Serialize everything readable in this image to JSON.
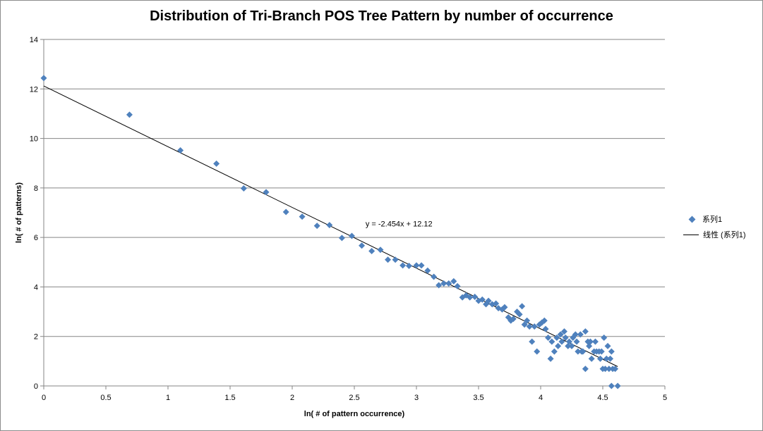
{
  "chart_data": {
    "type": "scatter",
    "title": "Distribution of Tri-Branch POS Tree Pattern by number of occurrence",
    "xlabel": "ln( # of pattern occurrence)",
    "ylabel": "ln( # of patterns)",
    "xlim": [
      0,
      5
    ],
    "ylim": [
      0,
      14
    ],
    "xticks": [
      0,
      0.5,
      1,
      1.5,
      2,
      2.5,
      3,
      3.5,
      4,
      4.5,
      5
    ],
    "yticks": [
      0,
      2,
      4,
      6,
      8,
      10,
      12,
      14
    ],
    "xtick_labels": [
      "0",
      "0.5",
      "1",
      "1.5",
      "2",
      "2.5",
      "3",
      "3.5",
      "4",
      "4.5",
      "5"
    ],
    "ytick_labels": [
      "0",
      "2",
      "4",
      "6",
      "8",
      "10",
      "12",
      "14"
    ],
    "grid": "horizontal",
    "legend_position": "right",
    "series": [
      {
        "name": "系列1",
        "marker": "diamond",
        "color": "#4f81bd",
        "points": [
          [
            0,
            12.44
          ],
          [
            0.69,
            10.96
          ],
          [
            1.1,
            9.52
          ],
          [
            1.39,
            8.98
          ],
          [
            1.61,
            7.98
          ],
          [
            1.79,
            7.83
          ],
          [
            1.95,
            7.03
          ],
          [
            2.08,
            6.84
          ],
          [
            2.2,
            6.47
          ],
          [
            2.3,
            6.5
          ],
          [
            2.4,
            5.98
          ],
          [
            2.48,
            6.06
          ],
          [
            2.56,
            5.67
          ],
          [
            2.64,
            5.45
          ],
          [
            2.71,
            5.5
          ],
          [
            2.77,
            5.1
          ],
          [
            2.83,
            5.1
          ],
          [
            2.89,
            4.87
          ],
          [
            2.94,
            4.85
          ],
          [
            3.0,
            4.87
          ],
          [
            3.04,
            4.87
          ],
          [
            3.09,
            4.66
          ],
          [
            3.14,
            4.41
          ],
          [
            3.18,
            4.07
          ],
          [
            3.22,
            4.14
          ],
          [
            3.26,
            4.14
          ],
          [
            3.3,
            4.23
          ],
          [
            3.33,
            4.03
          ],
          [
            3.37,
            3.58
          ],
          [
            3.4,
            3.66
          ],
          [
            3.43,
            3.58
          ],
          [
            3.47,
            3.6
          ],
          [
            3.5,
            3.44
          ],
          [
            3.53,
            3.49
          ],
          [
            3.56,
            3.3
          ],
          [
            3.58,
            3.44
          ],
          [
            3.61,
            3.3
          ],
          [
            3.64,
            3.33
          ],
          [
            3.66,
            3.14
          ],
          [
            3.69,
            3.09
          ],
          [
            3.71,
            3.18
          ],
          [
            3.74,
            2.77
          ],
          [
            3.76,
            2.64
          ],
          [
            3.78,
            2.71
          ],
          [
            3.81,
            3.0
          ],
          [
            3.83,
            2.89
          ],
          [
            3.85,
            3.22
          ],
          [
            3.87,
            2.48
          ],
          [
            3.89,
            2.64
          ],
          [
            3.91,
            2.4
          ],
          [
            3.93,
            1.79
          ],
          [
            3.95,
            2.4
          ],
          [
            3.97,
            1.39
          ],
          [
            3.99,
            2.48
          ],
          [
            4.01,
            2.56
          ],
          [
            4.03,
            2.64
          ],
          [
            4.04,
            2.3
          ],
          [
            4.06,
            1.95
          ],
          [
            4.08,
            1.1
          ],
          [
            4.09,
            1.79
          ],
          [
            4.11,
            1.39
          ],
          [
            4.13,
            1.95
          ],
          [
            4.14,
            1.61
          ],
          [
            4.16,
            2.08
          ],
          [
            4.17,
            1.79
          ],
          [
            4.19,
            2.2
          ],
          [
            4.2,
            1.95
          ],
          [
            4.22,
            1.61
          ],
          [
            4.23,
            1.79
          ],
          [
            4.25,
            1.61
          ],
          [
            4.26,
            1.95
          ],
          [
            4.28,
            2.08
          ],
          [
            4.29,
            1.79
          ],
          [
            4.3,
            1.39
          ],
          [
            4.32,
            2.08
          ],
          [
            4.33,
            1.39
          ],
          [
            4.34,
            1.39
          ],
          [
            4.36,
            2.2
          ],
          [
            4.36,
            0.69
          ],
          [
            4.38,
            1.79
          ],
          [
            4.39,
            1.61
          ],
          [
            4.4,
            1.79
          ],
          [
            4.41,
            1.1
          ],
          [
            4.43,
            1.39
          ],
          [
            4.44,
            1.79
          ],
          [
            4.45,
            1.39
          ],
          [
            4.47,
            1.39
          ],
          [
            4.48,
            1.1
          ],
          [
            4.49,
            1.39
          ],
          [
            4.5,
            0.69
          ],
          [
            4.51,
            1.95
          ],
          [
            4.52,
            0.69
          ],
          [
            4.53,
            1.1
          ],
          [
            4.54,
            1.61
          ],
          [
            4.55,
            0.69
          ],
          [
            4.56,
            1.1
          ],
          [
            4.57,
            1.39
          ],
          [
            4.57,
            0.0
          ],
          [
            4.58,
            0.69
          ],
          [
            4.6,
            0.69
          ],
          [
            4.62,
            0.0
          ]
        ]
      },
      {
        "name": "线性 (系列1)",
        "type": "trendline",
        "color": "#000000",
        "slope": -2.454,
        "intercept": 12.12,
        "x_range": [
          0,
          4.62
        ]
      }
    ],
    "annotations": [
      {
        "text": "y = -2.454x + 12.12",
        "x": 2.59,
        "y": 6.45
      }
    ]
  },
  "legend": {
    "items": [
      "系列1",
      "线性 (系列1)"
    ]
  }
}
